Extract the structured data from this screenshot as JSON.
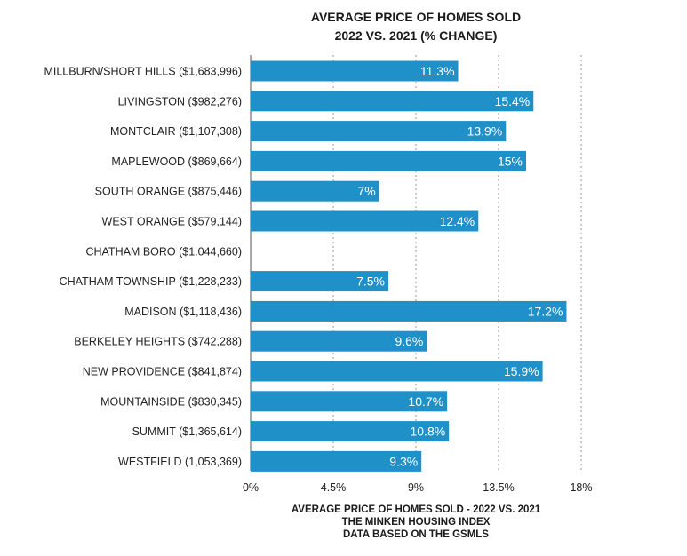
{
  "chart_data": {
    "type": "bar",
    "orientation": "horizontal",
    "title": "AVERAGE PRICE OF HOMES SOLD",
    "subtitle": "2022 VS. 2021   (% CHANGE)",
    "categories": [
      "MILLBURN/SHORT HILLS  ($1,683,996)",
      "LIVINGSTON ($982,276)",
      "MONTCLAIR ($1,107,308)",
      "MAPLEWOOD ($869,664)",
      "SOUTH ORANGE ($875,446)",
      "WEST ORANGE ($579,144)",
      "CHATHAM BORO ($1.044,660)",
      "CHATHAM TOWNSHIP ($1,228,233)",
      "MADISON ($1,118,436)",
      "BERKELEY HEIGHTS ($742,288)",
      "NEW PROVIDENCE ($841,874)",
      "MOUNTAINSIDE ($830,345)",
      "SUMMIT ($1,365,614)",
      "WESTFIELD (1,053,369)"
    ],
    "values": [
      11.3,
      15.4,
      13.9,
      15,
      7,
      12.4,
      0,
      7.5,
      17.2,
      9.6,
      15.9,
      10.7,
      10.8,
      9.3
    ],
    "value_labels": [
      "11.3%",
      "15.4%",
      "13.9%",
      "15%",
      "7%",
      "12.4%",
      "",
      "7.5%",
      "17.2%",
      "9.6%",
      "15.9%",
      "10.7%",
      "10.8%",
      "9.3%"
    ],
    "xlim": [
      0,
      18
    ],
    "x_ticks": [
      0,
      4.5,
      9,
      13.5,
      18
    ],
    "x_tick_labels": [
      "0%",
      "4.5%",
      "9%",
      "13.5%",
      "18%"
    ],
    "xlabel_lines": [
      "AVERAGE PRICE OF HOMES SOLD  - 2022 VS. 2021",
      "THE MINKEN HOUSING INDEX",
      "DATA BASED ON THE GSMLS"
    ],
    "grid": true,
    "bar_color": "#1f90c8"
  }
}
